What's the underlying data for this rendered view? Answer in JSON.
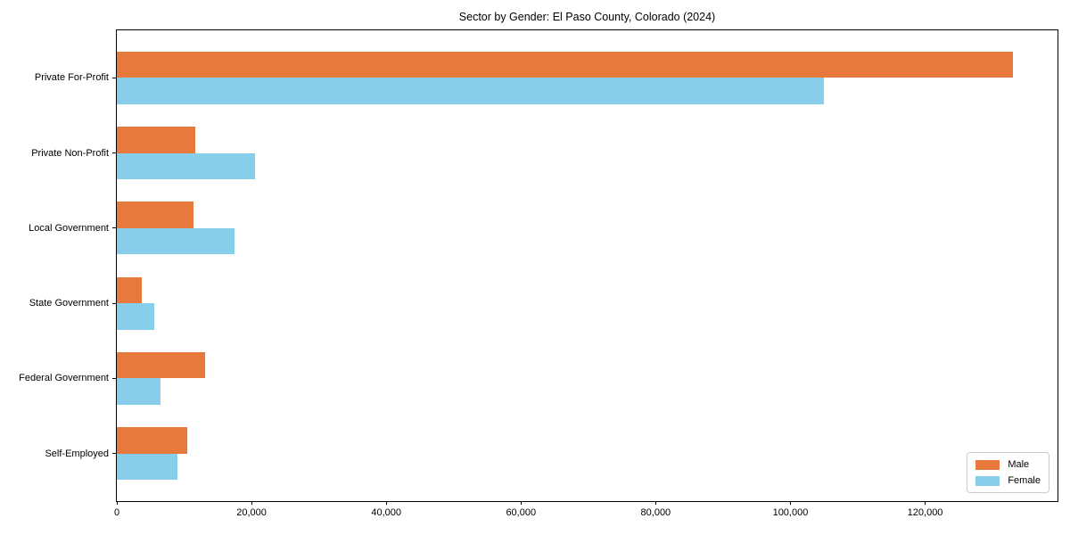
{
  "chart_data": {
    "type": "grouped_barh",
    "title": "Sector by Gender: El Paso County, Colorado (2024)",
    "categories": [
      "Private For-Profit",
      "Private Non-Profit",
      "Local Government",
      "State Government",
      "Federal Government",
      "Self-Employed"
    ],
    "series": [
      {
        "name": "Male",
        "color": "#e8793c",
        "values": [
          133000,
          11700,
          11400,
          3700,
          13100,
          10500
        ]
      },
      {
        "name": "Female",
        "color": "#87ceeb",
        "values": [
          105000,
          20500,
          17500,
          5600,
          6500,
          9000
        ]
      }
    ],
    "xlabel": "",
    "ylabel": "",
    "xlim": [
      0,
      139650
    ],
    "xticks": [
      {
        "value": 0,
        "label": "0"
      },
      {
        "value": 20000,
        "label": "20,000"
      },
      {
        "value": 40000,
        "label": "40,000"
      },
      {
        "value": 60000,
        "label": "60,000"
      },
      {
        "value": 80000,
        "label": "80,000"
      },
      {
        "value": 100000,
        "label": "100,000"
      },
      {
        "value": 120000,
        "label": "120,000"
      }
    ],
    "grid": false,
    "legend": {
      "position": "lower-right",
      "entries": [
        "Male",
        "Female"
      ]
    },
    "colors": {
      "male": "#e8793c",
      "female": "#87ceeb",
      "spine": "#000000",
      "text": "#000000",
      "legend_border": "#cccccc",
      "background": "#ffffff"
    }
  }
}
